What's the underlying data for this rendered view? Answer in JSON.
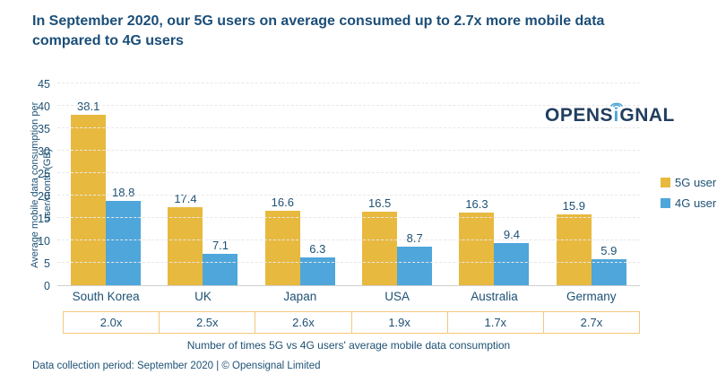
{
  "title_lines": [
    "In September 2020, our 5G users on average consumed up to 2.7x more mobile data",
    "compared to 4G users"
  ],
  "logo": {
    "part1": "OPENS",
    "i": "i",
    "part2": "GNAL",
    "accent_color": "#4BA5D8",
    "text_color": "#223E5F"
  },
  "footer": {
    "text": "Data collection period: September 2020 | © Opensignal Limited"
  },
  "chart_data": {
    "type": "bar",
    "categories": [
      "South Korea",
      "UK",
      "Japan",
      "USA",
      "Australia",
      "Germany"
    ],
    "series": [
      {
        "name": "5G user",
        "color": "#E8B93F",
        "values": [
          38.1,
          17.4,
          16.6,
          16.5,
          16.3,
          15.9
        ]
      },
      {
        "name": "4G user",
        "color": "#4EA6DB",
        "values": [
          18.8,
          7.1,
          6.3,
          8.7,
          9.4,
          5.9
        ]
      }
    ],
    "ylabel": "Average mobile data consumption per user/month (GB)",
    "ylabel_lines": [
      "Average mobile data consumption per",
      "user/month (GB)"
    ],
    "xlabel": "",
    "ylim": [
      0,
      45
    ],
    "ytick_step": 5,
    "grid": "horizontal-dashed",
    "legend_position": "right",
    "multipliers": [
      "2.0x",
      "2.5x",
      "2.6x",
      "1.9x",
      "1.7x",
      "2.7x"
    ],
    "table_caption": "Number of times 5G vs 4G users' average mobile data consumption"
  }
}
